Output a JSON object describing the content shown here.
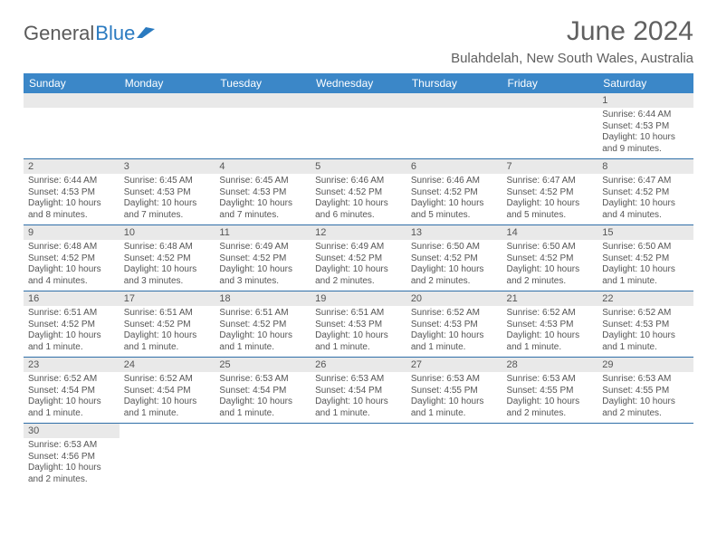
{
  "logo": {
    "text1": "General",
    "text2": "Blue",
    "color1": "#5a5a5a",
    "color2": "#2a7ac0"
  },
  "title": "June 2024",
  "subtitle": "Bulahdelah, New South Wales, Australia",
  "colors": {
    "header_bg": "#3b87c8",
    "header_fg": "#ffffff",
    "row_divider": "#2f6fa8",
    "daynum_bg": "#e9e9e9",
    "text": "#555555",
    "page_bg": "#ffffff"
  },
  "typography": {
    "title_fontsize": 30,
    "subtitle_fontsize": 15,
    "weekday_fontsize": 12,
    "daynum_fontsize": 11,
    "body_fontsize": 10
  },
  "weekdays": [
    "Sunday",
    "Monday",
    "Tuesday",
    "Wednesday",
    "Thursday",
    "Friday",
    "Saturday"
  ],
  "cells": [
    [
      {
        "day": "",
        "lines": []
      },
      {
        "day": "",
        "lines": []
      },
      {
        "day": "",
        "lines": []
      },
      {
        "day": "",
        "lines": []
      },
      {
        "day": "",
        "lines": []
      },
      {
        "day": "",
        "lines": []
      },
      {
        "day": "1",
        "lines": [
          "Sunrise: 6:44 AM",
          "Sunset: 4:53 PM",
          "Daylight: 10 hours",
          "and 9 minutes."
        ]
      }
    ],
    [
      {
        "day": "2",
        "lines": [
          "Sunrise: 6:44 AM",
          "Sunset: 4:53 PM",
          "Daylight: 10 hours",
          "and 8 minutes."
        ]
      },
      {
        "day": "3",
        "lines": [
          "Sunrise: 6:45 AM",
          "Sunset: 4:53 PM",
          "Daylight: 10 hours",
          "and 7 minutes."
        ]
      },
      {
        "day": "4",
        "lines": [
          "Sunrise: 6:45 AM",
          "Sunset: 4:53 PM",
          "Daylight: 10 hours",
          "and 7 minutes."
        ]
      },
      {
        "day": "5",
        "lines": [
          "Sunrise: 6:46 AM",
          "Sunset: 4:52 PM",
          "Daylight: 10 hours",
          "and 6 minutes."
        ]
      },
      {
        "day": "6",
        "lines": [
          "Sunrise: 6:46 AM",
          "Sunset: 4:52 PM",
          "Daylight: 10 hours",
          "and 5 minutes."
        ]
      },
      {
        "day": "7",
        "lines": [
          "Sunrise: 6:47 AM",
          "Sunset: 4:52 PM",
          "Daylight: 10 hours",
          "and 5 minutes."
        ]
      },
      {
        "day": "8",
        "lines": [
          "Sunrise: 6:47 AM",
          "Sunset: 4:52 PM",
          "Daylight: 10 hours",
          "and 4 minutes."
        ]
      }
    ],
    [
      {
        "day": "9",
        "lines": [
          "Sunrise: 6:48 AM",
          "Sunset: 4:52 PM",
          "Daylight: 10 hours",
          "and 4 minutes."
        ]
      },
      {
        "day": "10",
        "lines": [
          "Sunrise: 6:48 AM",
          "Sunset: 4:52 PM",
          "Daylight: 10 hours",
          "and 3 minutes."
        ]
      },
      {
        "day": "11",
        "lines": [
          "Sunrise: 6:49 AM",
          "Sunset: 4:52 PM",
          "Daylight: 10 hours",
          "and 3 minutes."
        ]
      },
      {
        "day": "12",
        "lines": [
          "Sunrise: 6:49 AM",
          "Sunset: 4:52 PM",
          "Daylight: 10 hours",
          "and 2 minutes."
        ]
      },
      {
        "day": "13",
        "lines": [
          "Sunrise: 6:50 AM",
          "Sunset: 4:52 PM",
          "Daylight: 10 hours",
          "and 2 minutes."
        ]
      },
      {
        "day": "14",
        "lines": [
          "Sunrise: 6:50 AM",
          "Sunset: 4:52 PM",
          "Daylight: 10 hours",
          "and 2 minutes."
        ]
      },
      {
        "day": "15",
        "lines": [
          "Sunrise: 6:50 AM",
          "Sunset: 4:52 PM",
          "Daylight: 10 hours",
          "and 1 minute."
        ]
      }
    ],
    [
      {
        "day": "16",
        "lines": [
          "Sunrise: 6:51 AM",
          "Sunset: 4:52 PM",
          "Daylight: 10 hours",
          "and 1 minute."
        ]
      },
      {
        "day": "17",
        "lines": [
          "Sunrise: 6:51 AM",
          "Sunset: 4:52 PM",
          "Daylight: 10 hours",
          "and 1 minute."
        ]
      },
      {
        "day": "18",
        "lines": [
          "Sunrise: 6:51 AM",
          "Sunset: 4:52 PM",
          "Daylight: 10 hours",
          "and 1 minute."
        ]
      },
      {
        "day": "19",
        "lines": [
          "Sunrise: 6:51 AM",
          "Sunset: 4:53 PM",
          "Daylight: 10 hours",
          "and 1 minute."
        ]
      },
      {
        "day": "20",
        "lines": [
          "Sunrise: 6:52 AM",
          "Sunset: 4:53 PM",
          "Daylight: 10 hours",
          "and 1 minute."
        ]
      },
      {
        "day": "21",
        "lines": [
          "Sunrise: 6:52 AM",
          "Sunset: 4:53 PM",
          "Daylight: 10 hours",
          "and 1 minute."
        ]
      },
      {
        "day": "22",
        "lines": [
          "Sunrise: 6:52 AM",
          "Sunset: 4:53 PM",
          "Daylight: 10 hours",
          "and 1 minute."
        ]
      }
    ],
    [
      {
        "day": "23",
        "lines": [
          "Sunrise: 6:52 AM",
          "Sunset: 4:54 PM",
          "Daylight: 10 hours",
          "and 1 minute."
        ]
      },
      {
        "day": "24",
        "lines": [
          "Sunrise: 6:52 AM",
          "Sunset: 4:54 PM",
          "Daylight: 10 hours",
          "and 1 minute."
        ]
      },
      {
        "day": "25",
        "lines": [
          "Sunrise: 6:53 AM",
          "Sunset: 4:54 PM",
          "Daylight: 10 hours",
          "and 1 minute."
        ]
      },
      {
        "day": "26",
        "lines": [
          "Sunrise: 6:53 AM",
          "Sunset: 4:54 PM",
          "Daylight: 10 hours",
          "and 1 minute."
        ]
      },
      {
        "day": "27",
        "lines": [
          "Sunrise: 6:53 AM",
          "Sunset: 4:55 PM",
          "Daylight: 10 hours",
          "and 1 minute."
        ]
      },
      {
        "day": "28",
        "lines": [
          "Sunrise: 6:53 AM",
          "Sunset: 4:55 PM",
          "Daylight: 10 hours",
          "and 2 minutes."
        ]
      },
      {
        "day": "29",
        "lines": [
          "Sunrise: 6:53 AM",
          "Sunset: 4:55 PM",
          "Daylight: 10 hours",
          "and 2 minutes."
        ]
      }
    ],
    [
      {
        "day": "30",
        "lines": [
          "Sunrise: 6:53 AM",
          "Sunset: 4:56 PM",
          "Daylight: 10 hours",
          "and 2 minutes."
        ]
      },
      {
        "day": "",
        "lines": [],
        "blank": true
      },
      {
        "day": "",
        "lines": [],
        "blank": true
      },
      {
        "day": "",
        "lines": [],
        "blank": true
      },
      {
        "day": "",
        "lines": [],
        "blank": true
      },
      {
        "day": "",
        "lines": [],
        "blank": true
      },
      {
        "day": "",
        "lines": [],
        "blank": true
      }
    ]
  ]
}
